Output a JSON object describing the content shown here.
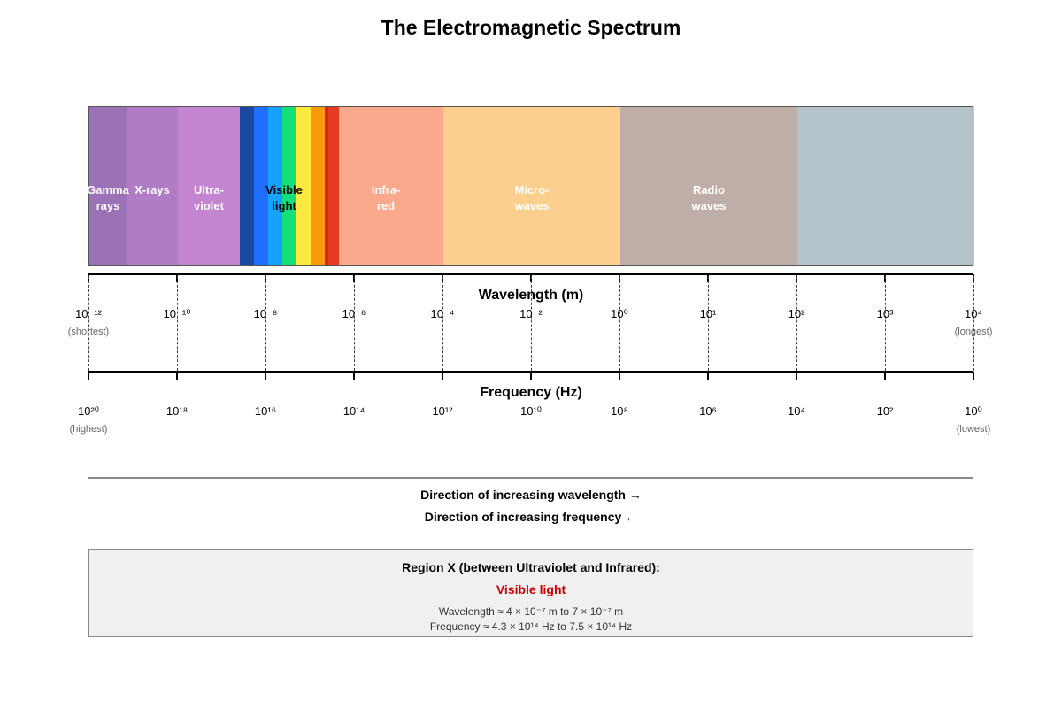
{
  "title": "The Electromagnetic Spectrum",
  "spectrum": {
    "bands": [
      {
        "name": "Gamma\nrays",
        "color": "#9b72b8"
      },
      {
        "name": "X-rays",
        "color": "#b07cc6"
      },
      {
        "name": "Ultra-\nviolet",
        "color": "#c485d0"
      },
      {
        "name": "Visible\nlight",
        "color": "#ffffff"
      },
      {
        "name": "Infra-\nred",
        "color": "#fba98c"
      },
      {
        "name": "Micro-\nwaves",
        "color": "#fdcf8e"
      },
      {
        "name": "Radio\nwaves",
        "color": "#bfada7"
      },
      {
        "name": "",
        "color": "#b4c2c9"
      }
    ],
    "visible_colors": [
      "#1a47a0",
      "#1f6fff",
      "#17a2ff",
      "#14e07a",
      "#fbe93f",
      "#fb9a08",
      "#d0291a",
      "#e63b22"
    ]
  },
  "wavelength_axis": {
    "title": "Wavelength (m)",
    "ticks": [
      "10⁻¹²",
      "10⁻¹⁰",
      "10⁻⁸",
      "10⁻⁶",
      "10⁻⁴",
      "10⁻²",
      "10⁰",
      "10¹",
      "10²",
      "10³",
      "10⁴"
    ],
    "left_note": "(shortest)",
    "right_note": "(longest)"
  },
  "frequency_axis": {
    "title": "Frequency (Hz)",
    "ticks": [
      "10²⁰",
      "10¹⁸",
      "10¹⁶",
      "10¹⁴",
      "10¹²",
      "10¹⁰",
      "10⁸",
      "10⁶",
      "10⁴",
      "10²",
      "10⁰"
    ],
    "left_note": "(highest)",
    "right_note": "(lowest)"
  },
  "directions": {
    "wavelength": "Direction of increasing wavelength →",
    "frequency": "Direction of increasing frequency ←"
  },
  "region_box": {
    "title": "Region X (between Ultraviolet and Infrared):",
    "answer": "Visible light",
    "wavelength_line": "Wavelength ≈ 4 × 10⁻⁷ m to 7 × 10⁻⁷ m",
    "frequency_line": "Frequency ≈ 4.3 × 10¹⁴ Hz to 7.5 × 10¹⁴ Hz"
  }
}
